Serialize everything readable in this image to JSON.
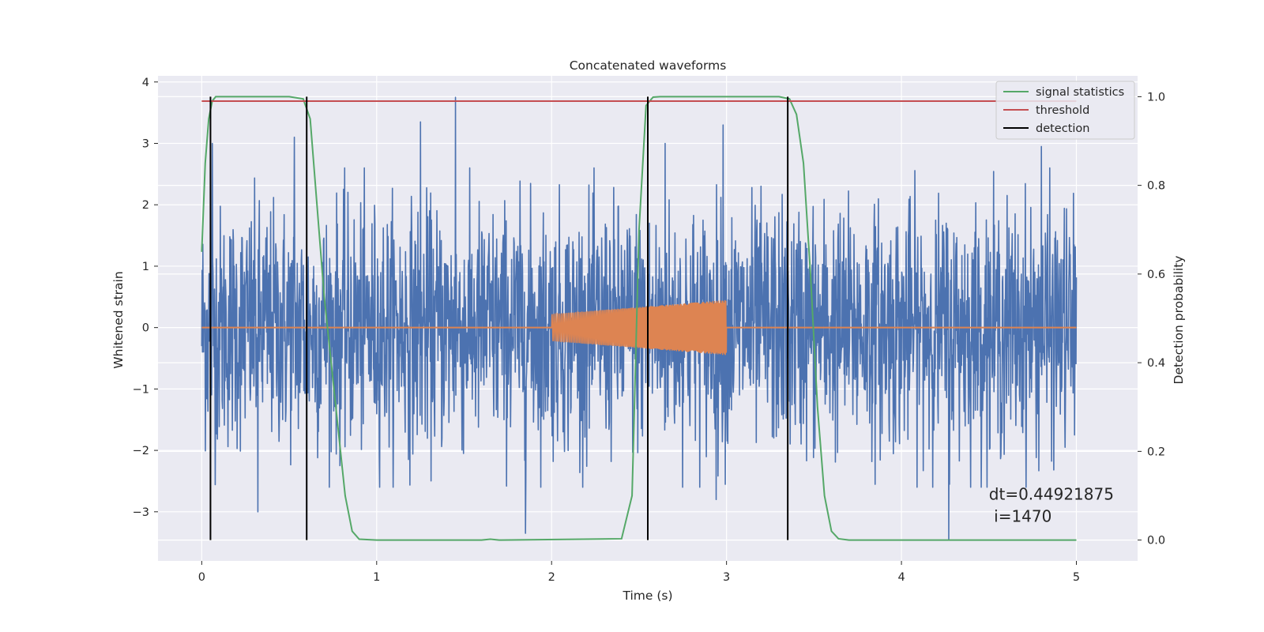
{
  "chart_data": {
    "type": "line",
    "title": "Concatenated waveforms",
    "xlabel": "Time (s)",
    "ylabel": "Whitened strain",
    "y2label": "Detection probability",
    "xlim": [
      -0.25,
      5.35
    ],
    "ylim": [
      -3.8,
      4.1
    ],
    "y2lim": [
      -0.047,
      1.047
    ],
    "xticks": [
      0,
      1,
      2,
      3,
      4,
      5
    ],
    "yticks": [
      -3,
      -2,
      -1,
      0,
      1,
      2,
      3,
      4
    ],
    "y2ticks": [
      0.0,
      0.2,
      0.4,
      0.6,
      0.8,
      1.0
    ],
    "grid": true,
    "legend_position": "top-right",
    "legend": [
      "signal statistics",
      "threshold",
      "detection"
    ],
    "colors": {
      "noise": "#4c72b0",
      "injected": "#dd8452",
      "signal_statistics": "#55a868",
      "threshold": "#c44e52",
      "detection": "#000000",
      "background": "#eaeaf2"
    },
    "series": [
      {
        "name": "",
        "axis": "left",
        "kind": "whitened noise",
        "x_range": [
          0,
          5
        ],
        "typical_amplitude": 1.3,
        "peaks": [
          {
            "x": 0.06,
            "y": 3.0
          },
          {
            "x": 0.53,
            "y": 3.1
          },
          {
            "x": 1.25,
            "y": 3.35
          },
          {
            "x": 1.45,
            "y": 3.75
          },
          {
            "x": 2.65,
            "y": 3.0
          },
          {
            "x": 2.98,
            "y": 3.3
          },
          {
            "x": 4.8,
            "y": 2.95
          },
          {
            "x": 1.85,
            "y": -3.35
          },
          {
            "x": 4.27,
            "y": -3.45
          },
          {
            "x": 0.32,
            "y": -3.0
          },
          {
            "x": 2.94,
            "y": -2.8
          }
        ]
      },
      {
        "name": "",
        "axis": "left",
        "kind": "injected chirp",
        "x_range": [
          2,
          3
        ],
        "amplitude_start": 0.22,
        "amplitude_end": 0.45
      },
      {
        "name": "signal statistics",
        "axis": "right",
        "x": [
          0,
          0.02,
          0.04,
          0.06,
          0.08,
          0.1,
          0.15,
          0.5,
          0.58,
          0.62,
          0.66,
          0.7,
          0.74,
          0.78,
          0.82,
          0.86,
          0.9,
          1.0,
          1.6,
          1.65,
          1.7,
          2.4,
          2.46,
          2.5,
          2.54,
          2.58,
          2.62,
          2.7,
          3.3,
          3.36,
          3.4,
          3.44,
          3.48,
          3.52,
          3.56,
          3.6,
          3.64,
          3.7,
          5.0
        ],
        "y": [
          0.65,
          0.85,
          0.95,
          0.99,
          1.0,
          1.0,
          1.0,
          1.0,
          0.995,
          0.95,
          0.75,
          0.55,
          0.4,
          0.25,
          0.1,
          0.02,
          0.002,
          0.0,
          0.0,
          0.002,
          0.0,
          0.003,
          0.1,
          0.7,
          0.98,
          0.999,
          1.0,
          1.0,
          1.0,
          0.995,
          0.96,
          0.85,
          0.6,
          0.3,
          0.1,
          0.02,
          0.003,
          0.0,
          0.0
        ]
      },
      {
        "name": "threshold",
        "axis": "right",
        "x": [
          0,
          5
        ],
        "y": [
          0.99,
          0.99
        ]
      },
      {
        "name": "detection",
        "axis": "right",
        "kind": "vertical lines",
        "x": [
          0.05,
          0.6,
          2.55,
          3.35
        ],
        "y_range": [
          0.0,
          1.0
        ]
      }
    ],
    "annotation": {
      "line1": "dt=0.44921875",
      "line2": " i=1470",
      "x": 4.5,
      "y": -2.8
    }
  }
}
